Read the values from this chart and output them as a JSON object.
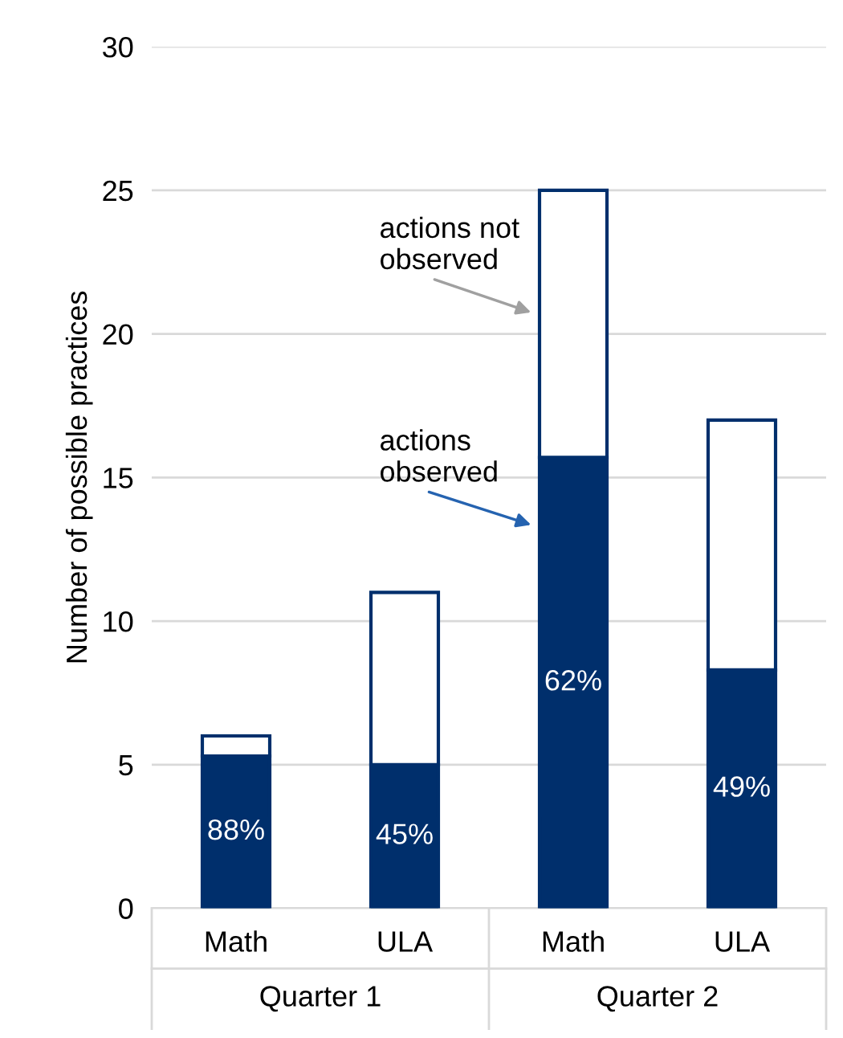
{
  "chart_data": {
    "type": "bar",
    "stacked": true,
    "ylabel": "Number of possible practices",
    "categories": [
      "Math",
      "ULA",
      "Math",
      "ULA"
    ],
    "annotations": [
      "Quarter 1",
      "Quarter 2",
      "88%",
      "45%",
      "62%",
      "49%"
    ],
    "series": [
      {
        "name": "actions\nobserved",
        "color": "#002f6c",
        "values": [
          5.3,
          5,
          15.7,
          8.3
        ]
      },
      {
        "name": "actions not\nobserved",
        "color": "#ffffff",
        "values": [
          0.7,
          6,
          9.3,
          8.7
        ]
      }
    ],
    "ylim": [
      0,
      30
    ],
    "yticks": [
      0,
      5,
      10,
      15,
      20,
      25,
      30
    ],
    "grid": "y"
  }
}
